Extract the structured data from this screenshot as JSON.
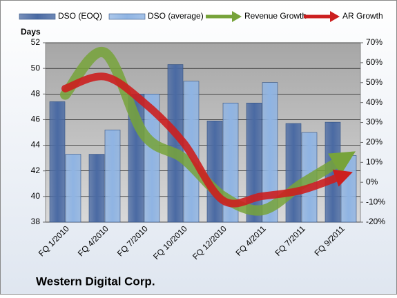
{
  "chart_data": {
    "type": "bar_line",
    "title": "Western Digital Corp.",
    "y_label": "Days",
    "categories": [
      "FQ 1/2010",
      "FQ 4/2010",
      "FQ 7/2010",
      "FQ 10/2010",
      "FQ 12/2010",
      "FQ 4/2011",
      "FQ 7/2011",
      "FQ 9/2011"
    ],
    "series": [
      {
        "name": "DSO (EOQ)",
        "type": "bar",
        "color": "#4a6aa3",
        "values": [
          47.4,
          43.3,
          48.0,
          50.3,
          45.9,
          47.3,
          45.7,
          45.8
        ]
      },
      {
        "name": "DSO (average)",
        "type": "bar",
        "color": "#8fb4e3",
        "values": [
          43.3,
          45.2,
          48.0,
          49.0,
          47.3,
          48.9,
          45.0,
          43.2
        ]
      },
      {
        "name": "Revenue Growth",
        "type": "line",
        "axis": "y2",
        "color": "#77a33a",
        "values": [
          44,
          65,
          24,
          12,
          -7,
          -14,
          -1,
          11
        ]
      },
      {
        "name": "AR Growth",
        "type": "line",
        "axis": "y2",
        "color": "#cc1f1f",
        "values": [
          47,
          53,
          40,
          20,
          -9,
          -7,
          -4,
          3
        ]
      }
    ],
    "ylim": [
      38,
      52
    ],
    "yticks": [
      38,
      40,
      42,
      44,
      46,
      48,
      50,
      52
    ],
    "y2lim": [
      -20,
      70
    ],
    "y2ticks": [
      {
        "value": -20,
        "label": "-20%"
      },
      {
        "value": -10,
        "label": "-10%"
      },
      {
        "value": 0,
        "label": "0%"
      },
      {
        "value": 10,
        "label": "10%"
      },
      {
        "value": 20,
        "label": "20%"
      },
      {
        "value": 30,
        "label": "30%"
      },
      {
        "value": 40,
        "label": "40%"
      },
      {
        "value": 50,
        "label": "50%"
      },
      {
        "value": 60,
        "label": "60%"
      },
      {
        "value": 70,
        "label": "70%"
      }
    ],
    "grid": true
  }
}
